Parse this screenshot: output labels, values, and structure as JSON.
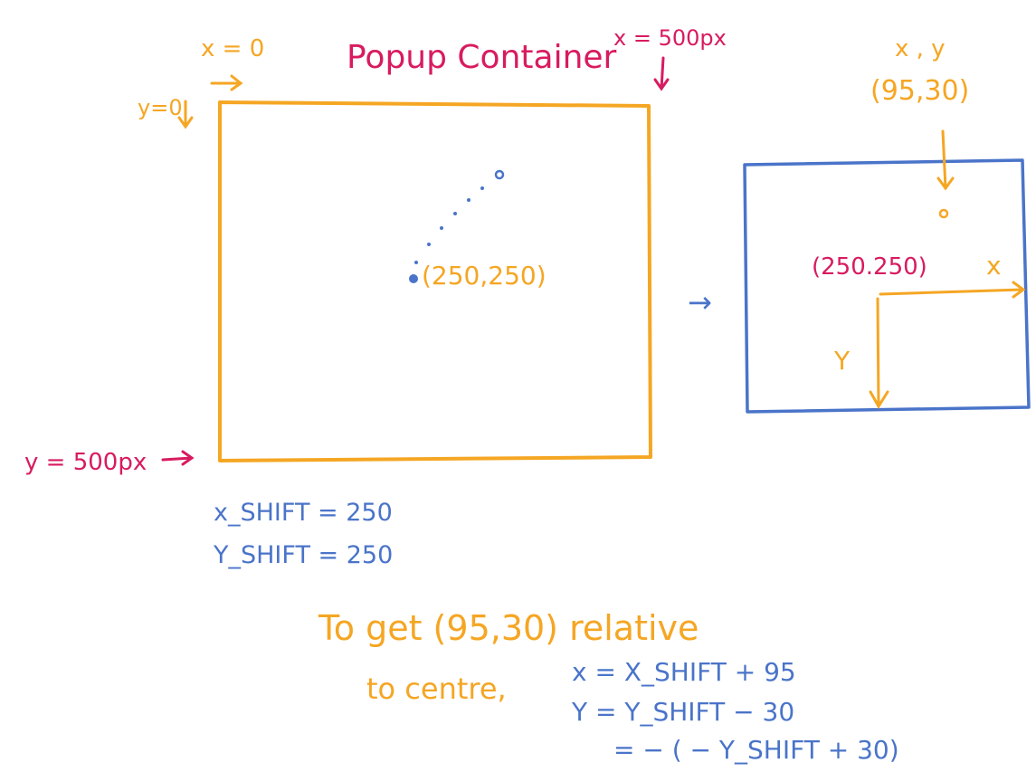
{
  "colors": {
    "orange": "#F5A623",
    "red": "#D81B60",
    "blue": "#4A74C9",
    "background": "#FFFFFF"
  },
  "left_diagram": {
    "title": "Popup Container",
    "x_zero_label": "x = 0",
    "y_zero_label": "y=0",
    "x_max_label": "x = 500px",
    "y_max_label": "y = 500px",
    "center_label": "(250,250)"
  },
  "transition_arrow": "→",
  "right_diagram": {
    "point_label_xy": "x , y",
    "point_label_value": "(95,30)",
    "center_label": "(250.250)",
    "x_axis_label": "x",
    "y_axis_label": "Y"
  },
  "shifts": {
    "x_shift": "x_SHIFT = 250",
    "y_shift": "Y_SHIFT = 250"
  },
  "explanation": {
    "line1": "To get (95,30) relative",
    "line2": "to centre,",
    "formula_x": "x = X_SHIFT + 95",
    "formula_y": "Y = Y_SHIFT − 30",
    "formula_y2": "= − ( − Y_SHIFT + 30)"
  }
}
